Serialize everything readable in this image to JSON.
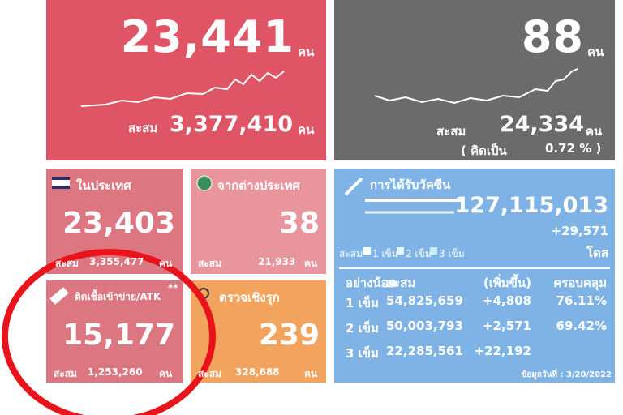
{
  "new_cases": {
    "value": "23,441",
    "unit": "คน",
    "cumulative_label": "สะสม",
    "cumulative": "3,377,410",
    "cumulative_unit": "คน"
  },
  "deaths": {
    "value": "88",
    "unit": "คน",
    "cumulative_label": "สะสม",
    "cumulative": "24,334",
    "cumulative_unit": "คน",
    "rate_label": "( คิดเป็น",
    "rate": "0.72 % )"
  },
  "domestic": {
    "label": "ในประเทศ",
    "value": "23,403",
    "cumulative_label": "สะสม",
    "cumulative": "3,355,477",
    "unit": "คน"
  },
  "imported": {
    "label": "จากต่างประเทศ",
    "value": "38",
    "cumulative_label": "สะสม",
    "cumulative": "21,933",
    "unit": "คน"
  },
  "atk": {
    "label": "ติดเชื้อเข้าข่าย/ATK",
    "note": "**",
    "value": "15,177",
    "cumulative_label": "สะสม",
    "cumulative": "1,253,260",
    "unit": "คน"
  },
  "proactive": {
    "label": "ตรวจเชิงรุก",
    "value": "239",
    "cumulative_label": "สะสม",
    "cumulative": "328,688",
    "unit": "คน"
  },
  "vaccine": {
    "title": "การได้รับวัคซีน",
    "total": "127,115,013",
    "daily": "+29,571",
    "unit": "โดส",
    "legend": [
      "สะสม",
      "1 เข็ม",
      "2 เข็ม",
      "3 เข็ม"
    ],
    "headers": [
      "อย่างน้อย",
      "สะสม",
      "(เพิ่มขึ้น)",
      "ครอบคลุม"
    ],
    "rows": [
      [
        "1 เข็ม",
        "54,825,659",
        "+4,808",
        "76.11%"
      ],
      [
        "2 เข็ม",
        "50,003,793",
        "+2,571",
        "69.42%"
      ],
      [
        "3 เข็ม",
        "22,285,561",
        "+22,192"
      ]
    ],
    "footer": "ข้อมูลวันที่ : 3/20/2022"
  }
}
